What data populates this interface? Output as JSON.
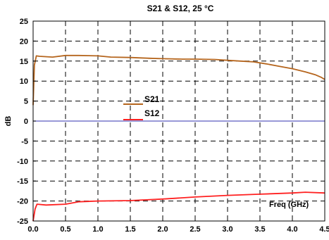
{
  "chart_data": {
    "type": "line",
    "title": "S21 & S12, 25 °C",
    "xlabel": "",
    "ylabel": "dB",
    "annotation": "Freq (GHz)",
    "xlim": [
      0.0,
      4.5
    ],
    "ylim": [
      -25,
      25
    ],
    "xticks": [
      "0.0",
      "0.5",
      "1.0",
      "1.5",
      "2.0",
      "2.5",
      "3.0",
      "3.5",
      "4.0",
      "4.5"
    ],
    "yticks": [
      "25",
      "20",
      "15",
      "10",
      "5",
      "0",
      "-5",
      "-10",
      "-15",
      "-20",
      "-25"
    ],
    "grid": true,
    "legend": "center",
    "series": [
      {
        "name": "S21",
        "color": "#b5651d",
        "x": [
          0.0,
          0.02,
          0.05,
          0.1,
          0.3,
          0.5,
          0.7,
          1.0,
          1.2,
          1.5,
          1.8,
          2.0,
          2.3,
          2.5,
          2.8,
          3.0,
          3.2,
          3.4,
          3.6,
          3.8,
          4.0,
          4.2,
          4.35,
          4.45,
          4.5
        ],
        "y": [
          4.0,
          14.0,
          16.3,
          16.2,
          16.0,
          16.4,
          16.4,
          16.3,
          16.0,
          15.9,
          15.7,
          15.6,
          15.5,
          15.5,
          15.4,
          15.2,
          15.0,
          14.8,
          14.3,
          13.7,
          13.1,
          12.3,
          11.6,
          10.9,
          10.4
        ]
      },
      {
        "name": "S12",
        "color": "#ff2020",
        "x": [
          0.0,
          0.03,
          0.06,
          0.2,
          0.5,
          0.7,
          1.0,
          1.5,
          2.0,
          2.5,
          3.0,
          3.5,
          4.0,
          4.2,
          4.5
        ],
        "y": [
          -25.0,
          -22.0,
          -20.8,
          -21.0,
          -20.8,
          -20.2,
          -20.0,
          -19.9,
          -19.5,
          -19.0,
          -18.6,
          -18.3,
          -18.0,
          -17.8,
          -18.0
        ]
      },
      {
        "name": "",
        "color": "#5c5cc0",
        "x": [
          0.0,
          4.5
        ],
        "y": [
          0.0,
          0.0
        ]
      }
    ]
  }
}
